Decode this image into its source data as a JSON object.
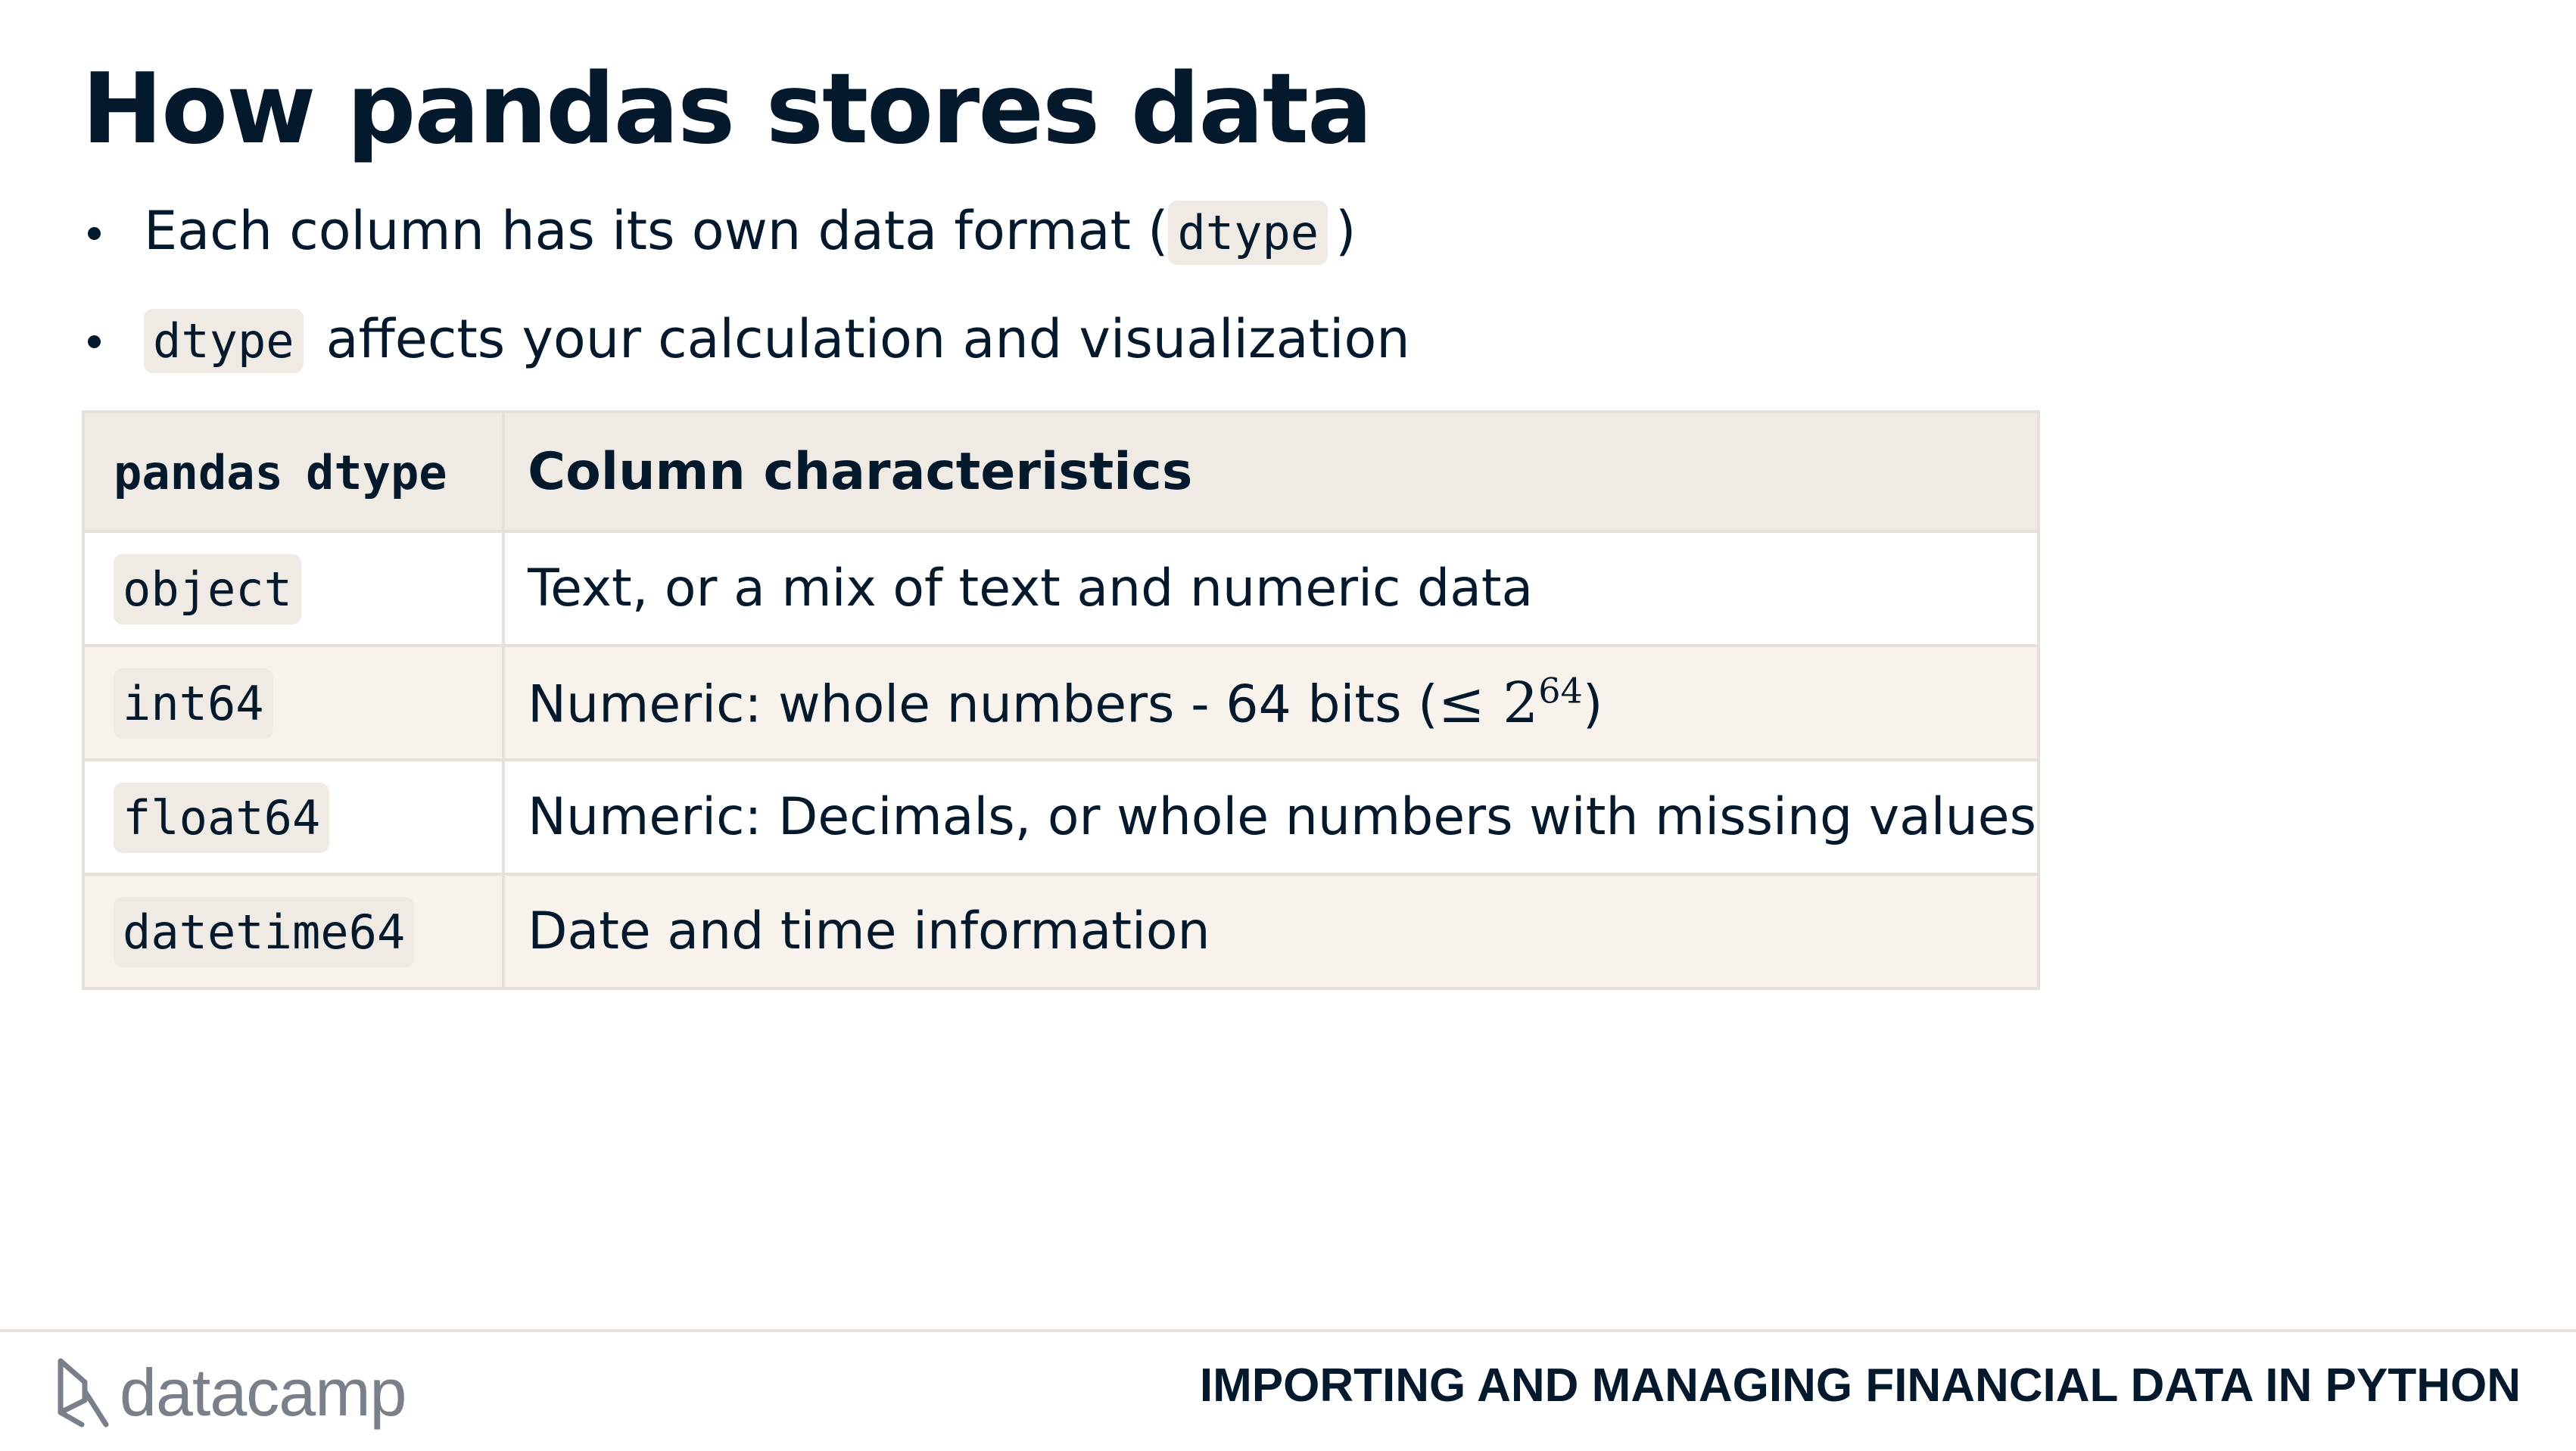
{
  "slide": {
    "title": "How pandas stores data"
  },
  "bullets": {
    "b1_text": "Each column has its own data format (",
    "b1_code": "dtype",
    "b1_close": ")",
    "b2_code": "dtype",
    "b2_text": "affects your calculation and visualization"
  },
  "table": {
    "header_c1_a": "pandas",
    "header_c1_b": "dtype",
    "header_c2": "Column characteristics",
    "rows": [
      {
        "dtype": "object",
        "desc": "Text, or a mix of text and numeric data"
      },
      {
        "dtype": "int64",
        "desc": "Numeric: whole numbers - 64 bits (",
        "math_le": "≤ 2",
        "math_exp": "64",
        "desc_close": ")"
      },
      {
        "dtype": "float64",
        "desc": "Numeric: Decimals, or whole numbers with missing values"
      },
      {
        "dtype": "datetime64",
        "desc": "Date and time information"
      }
    ]
  },
  "footer": {
    "logo_text": "datacamp",
    "logo_icon": "datacamp-logo-icon",
    "course_title": "IMPORTING AND MANAGING FINANCIAL DATA IN PYTHON"
  }
}
